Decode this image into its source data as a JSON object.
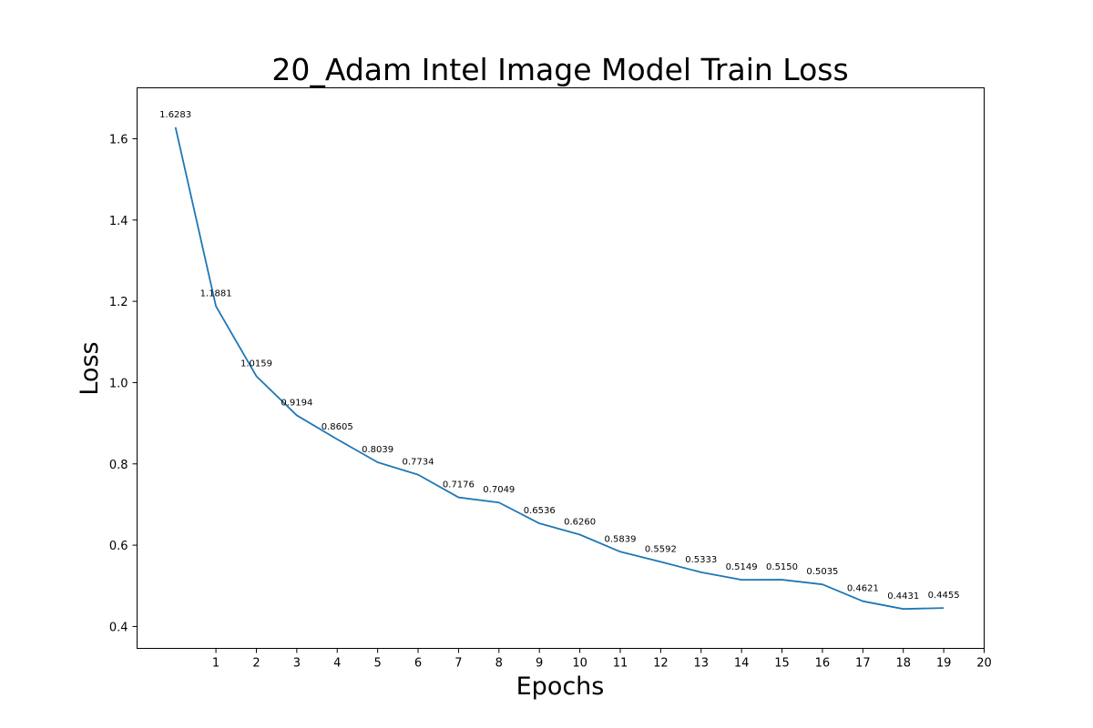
{
  "chart_data": {
    "type": "line",
    "title": "20_Adam Intel Image Model Train Loss",
    "xlabel": "Epochs",
    "ylabel": "Loss",
    "x": [
      0,
      1,
      2,
      3,
      4,
      5,
      6,
      7,
      8,
      9,
      10,
      11,
      12,
      13,
      14,
      15,
      16,
      17,
      18,
      19
    ],
    "values": [
      1.6283,
      1.1881,
      1.0159,
      0.9194,
      0.8605,
      0.8039,
      0.7734,
      0.7176,
      0.7049,
      0.6536,
      0.626,
      0.5839,
      0.5592,
      0.5333,
      0.5149,
      0.515,
      0.5035,
      0.4621,
      0.4431,
      0.4455
    ],
    "data_labels": [
      "1.6283",
      "1.1881",
      "1.0159",
      "0.9194",
      "0.8605",
      "0.8039",
      "0.7734",
      "0.7176",
      "0.7049",
      "0.6536",
      "0.6260",
      "0.5839",
      "0.5592",
      "0.5333",
      "0.5149",
      "0.5150",
      "0.5035",
      "0.4621",
      "0.4431",
      "0.4455"
    ],
    "xticks": [
      "1",
      "2",
      "3",
      "4",
      "5",
      "6",
      "7",
      "8",
      "9",
      "10",
      "11",
      "12",
      "13",
      "14",
      "15",
      "16",
      "17",
      "18",
      "19",
      "20"
    ],
    "yticks": [
      "0.4",
      "0.6",
      "0.8",
      "1.0",
      "1.2",
      "1.4",
      "1.6"
    ],
    "xlim": [
      -0.95,
      20
    ],
    "ylim": [
      0.3461,
      1.7253
    ],
    "grid": false,
    "line_color": "#1f77b4"
  }
}
